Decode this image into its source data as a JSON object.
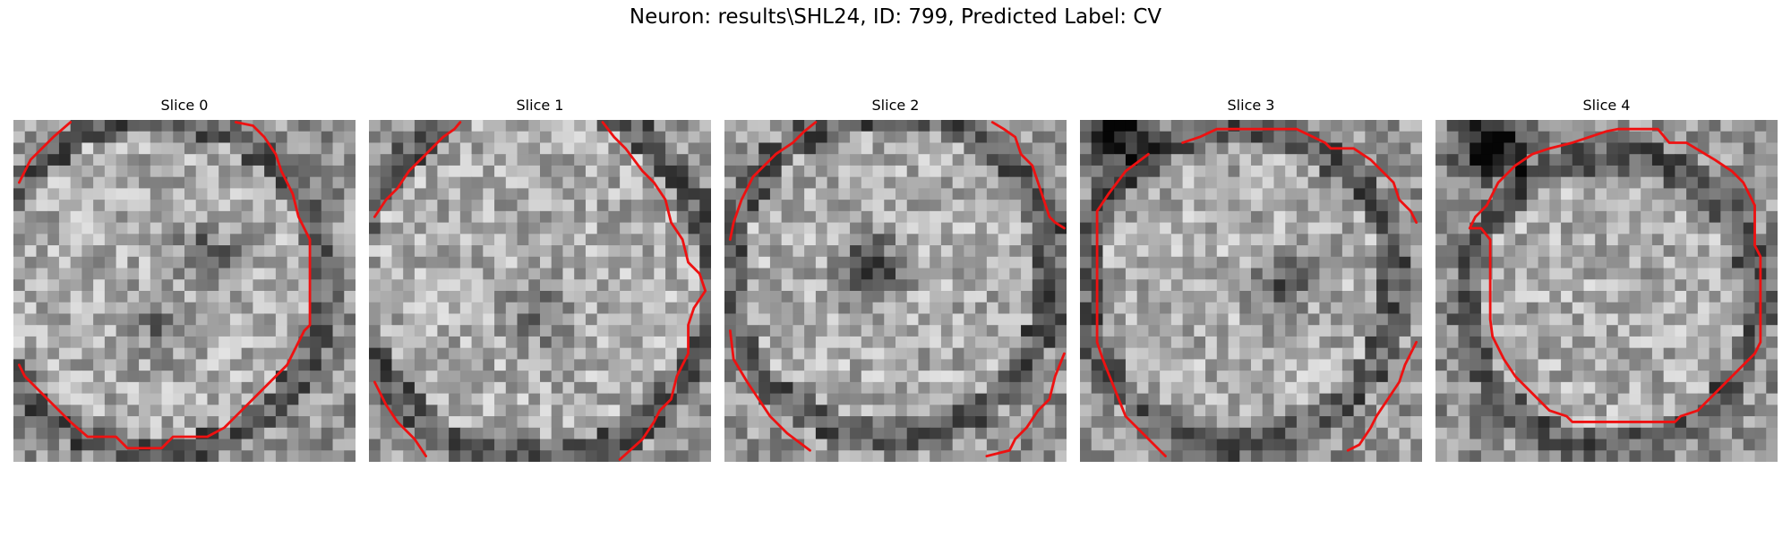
{
  "figure": {
    "title": "Neuron: results\\SHL24, ID: 799, Predicted Label: CV"
  },
  "panels": [
    {
      "title": "Slice 0"
    },
    {
      "title": "Slice 1"
    },
    {
      "title": "Slice 2"
    },
    {
      "title": "Slice 3"
    },
    {
      "title": "Slice 4"
    }
  ],
  "colors": {
    "contour": "#ee1111",
    "background": "#ffffff"
  }
}
